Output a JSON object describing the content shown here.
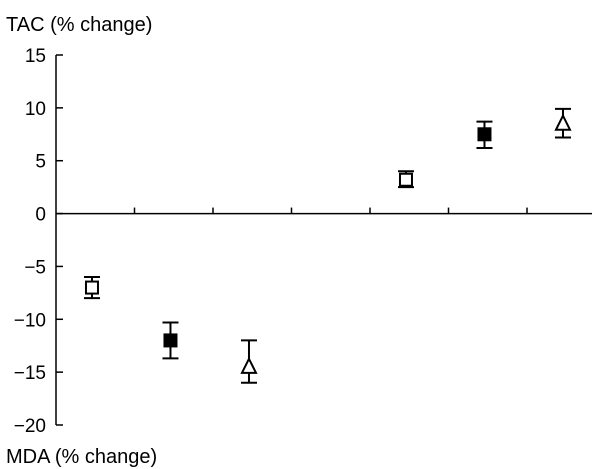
{
  "chart_data": {
    "type": "scatter",
    "title": "",
    "ylabel_top": "TAC (% change)",
    "ylabel_bottom": "MDA (% change)",
    "ylim": [
      -20,
      15
    ],
    "yticks": [
      15,
      10,
      5,
      0,
      -5,
      -10,
      -15,
      -20
    ],
    "ytick_labels": [
      "15",
      "10",
      "5",
      "0",
      "−5",
      "−10",
      "−15",
      "−20"
    ],
    "x_positions": 7,
    "series": [
      {
        "marker": "open-square",
        "color": "#000000",
        "points": [
          {
            "x": 1,
            "y": -7.0,
            "err_low": -8.0,
            "err_high": -6.0
          },
          {
            "x": 5,
            "y": 3.2,
            "err_low": 2.5,
            "err_high": 4.0
          }
        ]
      },
      {
        "marker": "filled-square",
        "color": "#000000",
        "points": [
          {
            "x": 2,
            "y": -12.0,
            "err_low": -13.7,
            "err_high": -10.3
          },
          {
            "x": 6,
            "y": 7.5,
            "err_low": 6.2,
            "err_high": 8.7
          }
        ]
      },
      {
        "marker": "open-triangle",
        "color": "#000000",
        "points": [
          {
            "x": 3,
            "y": -14.5,
            "err_low": -16.0,
            "err_high": -12.0
          },
          {
            "x": 7,
            "y": 8.5,
            "err_low": 7.2,
            "err_high": 9.9
          }
        ]
      }
    ],
    "grid": false,
    "legend": "none"
  }
}
